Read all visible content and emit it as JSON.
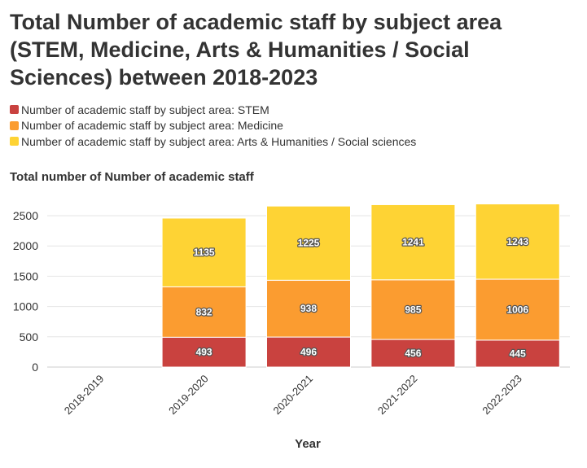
{
  "title": "Total Number of academic staff by subject area (STEM, Medicine, Arts & Humanities / Social Sciences) between 2018-2023",
  "legend": [
    {
      "label": "Number of academic staff by subject area: STEM",
      "color": "#c9423f"
    },
    {
      "label": "Number of academic staff by subject area: Medicine",
      "color": "#fb9c30"
    },
    {
      "label": "Number of academic staff by subject area: Arts & Humanities / Social sciences",
      "color": "#fed334"
    }
  ],
  "chart_data": {
    "type": "bar",
    "stacked": true,
    "title": "Total number of Number of academic staff",
    "xlabel": "Year",
    "ylabel": "",
    "ylim": [
      0,
      2700
    ],
    "yticks": [
      0,
      500,
      1000,
      1500,
      2000,
      2500
    ],
    "grid": true,
    "legend_position": "top-left",
    "categories": [
      "2018-2019",
      "2019-2020",
      "2020-2021",
      "2021-2022",
      "2022-2023"
    ],
    "series": [
      {
        "name": "Number of academic staff by subject area: STEM",
        "color": "#c9423f",
        "values": [
          null,
          493,
          496,
          456,
          445
        ]
      },
      {
        "name": "Number of academic staff by subject area: Medicine",
        "color": "#fb9c30",
        "values": [
          null,
          832,
          938,
          985,
          1006
        ]
      },
      {
        "name": "Number of academic staff by subject area: Arts & Humanities / Social sciences",
        "color": "#fed334",
        "values": [
          null,
          1135,
          1225,
          1241,
          1243
        ]
      }
    ]
  }
}
